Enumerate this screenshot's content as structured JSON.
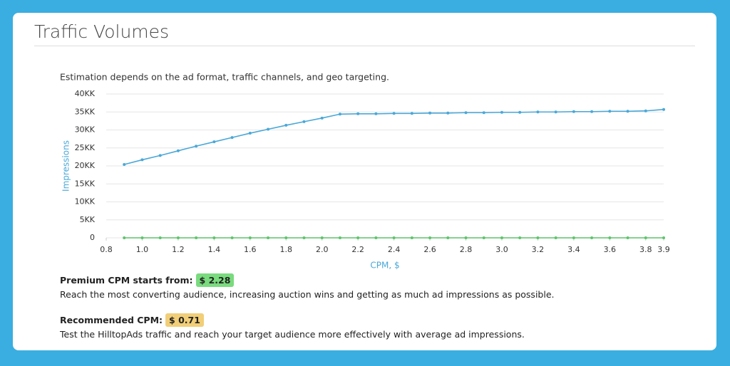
{
  "header": {
    "title": "Traffic Volumes"
  },
  "chart_data": {
    "type": "line",
    "subtitle": "Estimation depends on the ad format, traffic channels, and geo targeting.",
    "x_label": "CPM, $",
    "y_label": "Impressions",
    "x": [
      0.9,
      1.0,
      1.1,
      1.2,
      1.3,
      1.4,
      1.5,
      1.6,
      1.7,
      1.8,
      1.9,
      2.0,
      2.1,
      2.2,
      2.3,
      2.4,
      2.5,
      2.6,
      2.7,
      2.8,
      2.9,
      3.0,
      3.1,
      3.2,
      3.3,
      3.4,
      3.5,
      3.6,
      3.7,
      3.8,
      3.9
    ],
    "series": [
      {
        "color": "#4aa8d8",
        "values": [
          20.4,
          21.7,
          22.9,
          24.2,
          25.5,
          26.7,
          27.9,
          29.1,
          30.2,
          31.3,
          32.3,
          33.3,
          34.4,
          34.5,
          34.5,
          34.6,
          34.6,
          34.7,
          34.7,
          34.8,
          34.8,
          34.9,
          34.9,
          35.0,
          35.0,
          35.1,
          35.1,
          35.2,
          35.2,
          35.3,
          35.7
        ]
      },
      {
        "color": "#5cc46a",
        "values": [
          0,
          0,
          0,
          0,
          0,
          0,
          0,
          0,
          0,
          0,
          0,
          0,
          0,
          0,
          0,
          0,
          0,
          0,
          0,
          0,
          0,
          0,
          0,
          0,
          0,
          0,
          0,
          0,
          0,
          0,
          0
        ]
      }
    ],
    "xlim": [
      0.8,
      3.9
    ],
    "ylim": [
      0,
      40
    ],
    "xticks": [
      0.8,
      {
        "value": 1,
        "label": "1.0"
      },
      1.2,
      1.4,
      1.6,
      1.8,
      {
        "value": 2,
        "label": "2.0"
      },
      2.2,
      2.4,
      2.6,
      2.8,
      {
        "value": 3,
        "label": "3.0"
      },
      3.2,
      3.4,
      3.6,
      3.8,
      3.9
    ],
    "yticks": [
      0,
      {
        "value": 5,
        "label": "5KK"
      },
      {
        "value": 10,
        "label": "10KK"
      },
      {
        "value": 15,
        "label": "15KK"
      },
      {
        "value": 20,
        "label": "20KK"
      },
      {
        "value": 25,
        "label": "25KK"
      },
      {
        "value": 30,
        "label": "30KK"
      },
      {
        "value": 35,
        "label": "35KK"
      },
      {
        "value": 40,
        "label": "40KK"
      }
    ],
    "grid": true,
    "axis_label_color": "#4aa8d8"
  },
  "pricing": {
    "premium": {
      "label": "Premium CPM starts from:",
      "value": "$ 2.28",
      "description": "Reach the most converting audience, increasing auction wins and getting as much ad impressions as possible."
    },
    "recommended": {
      "label": "Recommended CPM:",
      "value": "$ 0.71",
      "description": "Test the HilltopAds traffic and reach your target audience more effectively with average ad impressions."
    }
  }
}
